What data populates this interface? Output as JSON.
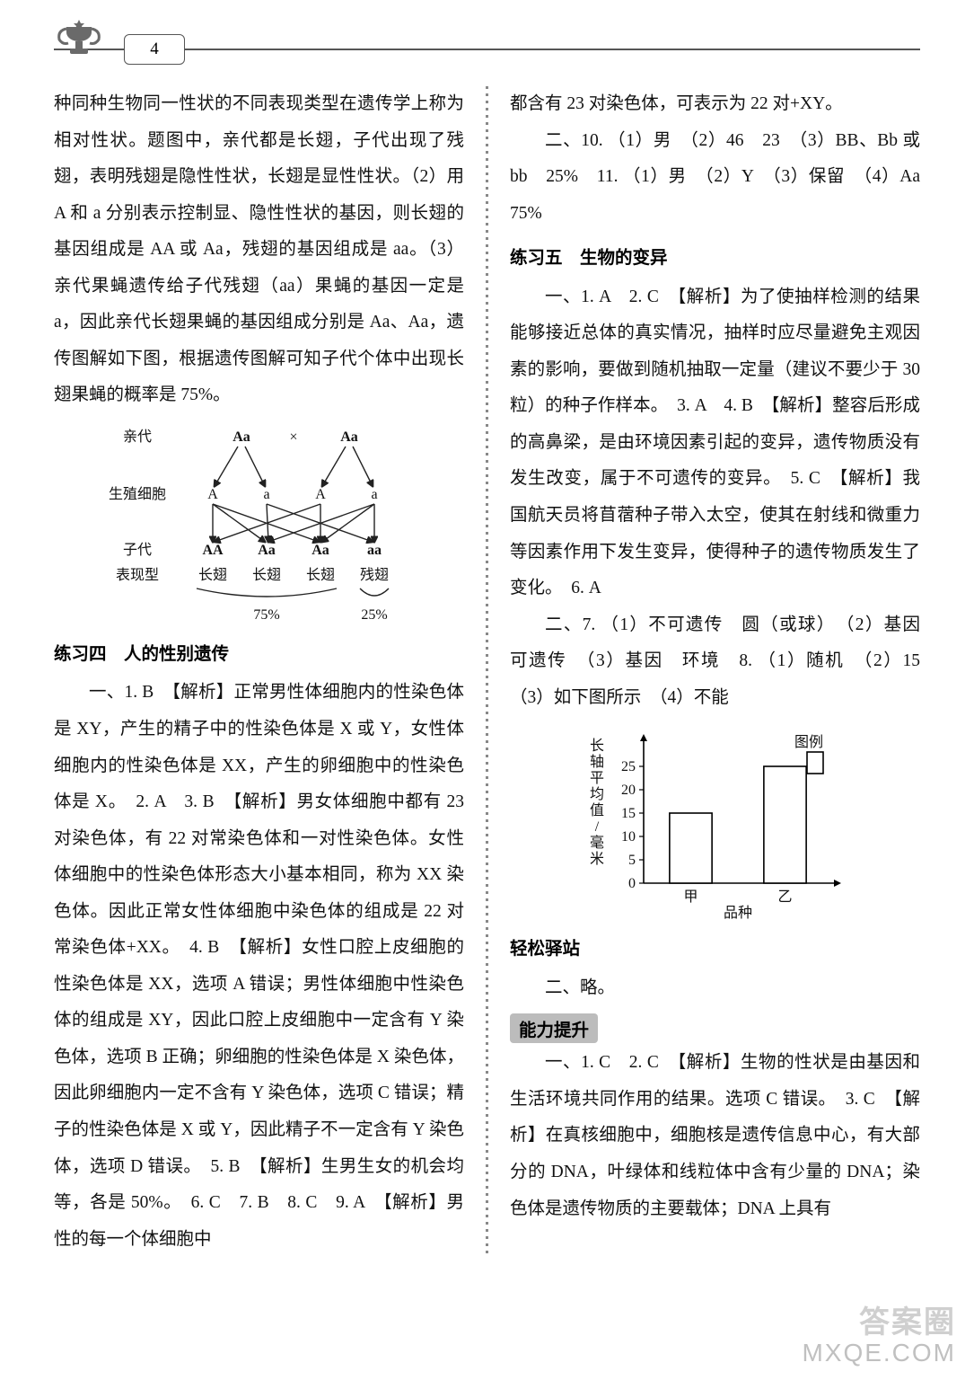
{
  "page_number": "4",
  "left": {
    "p1": "种同种生物同一性状的不同表现类型在遗传学上称为相对性状。题图中，亲代都是长翅，子代出现了残翅，表明残翅是隐性性状，长翅是显性性状。（2）用 A 和 a 分别表示控制显、隐性性状的基因，则长翅的基因组成是 AA 或 Aa，残翅的基因组成是 aa。（3）亲代果蝇遗传给子代残翅（aa）果蝇的基因一定是 a，因此亲代长翅果蝇的基因组成分别是 Aa、Aa，遗传图解如下图，根据遗传图解可知子代个体中出现长翅果蝇的概率是 75%。",
    "diagram": {
      "labels": {
        "parent": "亲代",
        "gamete": "生殖细胞",
        "offspring": "子代",
        "phenotype": "表现型",
        "cross": "×",
        "parent_geno": [
          "Aa",
          "Aa"
        ],
        "gametes": [
          "A",
          "a",
          "A",
          "a"
        ],
        "offspring_geno": [
          "AA",
          "Aa",
          "Aa",
          "aa"
        ],
        "phenos": [
          "长翅",
          "长翅",
          "长翅",
          "残翅"
        ],
        "percent_major": "75%",
        "percent_minor": "25%"
      },
      "colors": {
        "line": "#222",
        "text": "#111"
      },
      "fontsize": 16
    },
    "section4_title": "练习四　人的性别遗传",
    "p2": "一、1. B　【解析】正常男性体细胞内的性染色体是 XY，产生的精子中的性染色体是 X 或 Y，女性体细胞内的性染色体是 XX，产生的卵细胞中的性染色体是 X。　2. A　3. B　【解析】男女体细胞中都有 23 对染色体，有 22 对常染色体和一对性染色体。女性体细胞中的性染色体形态大小基本相同，称为 XX 染色体。因此正常女性体细胞中染色体的组成是 22 对常染色体+XX。　4. B　【解析】女性口腔上皮细胞的性染色体是 XX，选项 A 错误；男性体细胞中性染色体的组成是 XY，因此口腔上皮细胞中一定含有 Y 染色体，选项 B 正确；卵细胞的性染色体是 X 染色体，因此卵细胞内一定不含有 Y 染色体，选项 C 错误；精子的性染色体是 X 或 Y，因此精子不一定含有 Y 染色体，选项 D 错误。　5. B　【解析】生男生女的机会均等，各是 50%。　6. C　7. B　8. C　9. A　【解析】男性的每一个体细胞中"
  },
  "right": {
    "p1": "都含有 23 对染色体，可表示为 22 对+XY。",
    "p2": "二、10. （1）男　（2）46　23　（3）BB、Bb 或 bb　25%　11. （1）男　（2）Y　（3）保留　（4）Aa　75%",
    "section5_title": "练习五　生物的变异",
    "p3": "一、1. A　2. C　【解析】为了使抽样检测的结果能够接近总体的真实情况，抽样时应尽量避免主观因素的影响，要做到随机抽取一定量（建议不要少于 30 粒）的种子作样本。　3. A　4. B　【解析】整容后形成的高鼻梁，是由环境因素引起的变异，遗传物质没有发生改变，属于不可遗传的变异。　5. C　【解析】我国航天员将苜蓿种子带入太空，使其在射线和微重力等因素作用下发生变异，使得种子的遗传物质发生了变化。　6. A",
    "p4": "二、7. （1）不可遗传　圆（或球）　（2）基因　可遗传　（3）基因　环境　8. （1）随机　（2）15　（3）如下图所示　（4）不能",
    "barchart": {
      "type": "bar",
      "categories": [
        "甲",
        "乙"
      ],
      "values": [
        15,
        25
      ],
      "ylabel": "长轴平均值/毫米",
      "xlabel": "品种",
      "legend_label": "图例",
      "ylim": [
        0,
        30
      ],
      "yticks": [
        0,
        5,
        10,
        15,
        20,
        25
      ],
      "bar_color": "#ffffff",
      "bar_border": "#000000",
      "axis_color": "#000000",
      "fontsize": 16,
      "bar_width": 0.45
    },
    "relax_title": "轻松驿站",
    "relax_body": "二、略。",
    "ability_title": "能力提升",
    "p5": "一、1. C　2. C　【解析】生物的性状是由基因和生活环境共同作用的结果。选项 C 错误。　3. C　【解析】在真核细胞中，细胞核是遗传信息中心，有大部分的 DNA，叶绿体和线粒体中含有少量的 DNA；染色体是遗传物质的主要载体；DNA 上具有"
  },
  "watermark": {
    "cn": "答案圈",
    "en": "MXQE.COM"
  }
}
